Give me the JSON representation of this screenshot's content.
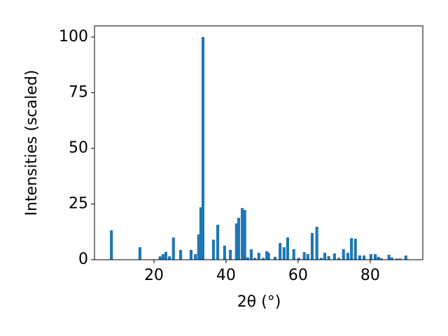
{
  "chart_data": {
    "type": "bar",
    "x_label": "2θ (°)",
    "y_label": "Intensities (scaled)",
    "color": "#1f77b4",
    "x": [
      8.2,
      16.1,
      21.7,
      22.5,
      23.3,
      24.3,
      25.4,
      27.4,
      30.3,
      31.5,
      32.4,
      33.0,
      33.6,
      36.5,
      37.7,
      39.6,
      41.2,
      42.9,
      43.5,
      44.5,
      45.2,
      46.0,
      47.0,
      48.0,
      49.1,
      50.3,
      51.3,
      51.8,
      53.6,
      55.0,
      56.1,
      57.1,
      58.8,
      60.2,
      61.7,
      62.7,
      63.9,
      65.2,
      66.4,
      67.4,
      68.5,
      70.1,
      71.3,
      72.6,
      73.8,
      74.8,
      75.9,
      77.1,
      78.3,
      80.2,
      81.4,
      82.3,
      83.1,
      85.2,
      86.0,
      87.4,
      88.3,
      89.9
    ],
    "values": [
      13.2,
      5.6,
      1.5,
      2.5,
      3.5,
      1.5,
      10,
      4.4,
      4.4,
      2.5,
      11.3,
      23.5,
      100,
      9,
      15.7,
      6.3,
      4.4,
      16.3,
      18.8,
      23.2,
      22.3,
      1,
      4.7,
      0.8,
      3.1,
      0.8,
      3.8,
      3.1,
      1.3,
      7.5,
      5.6,
      10,
      4.7,
      0.8,
      3.4,
      2.5,
      12,
      14.8,
      0.8,
      3.1,
      1.6,
      2.8,
      0.8,
      4.7,
      3.1,
      9.7,
      9.4,
      1.9,
      1.9,
      2.5,
      2.5,
      1.3,
      0.6,
      2.2,
      1,
      0.5,
      0.5,
      1.9
    ],
    "xlim": [
      3.5,
      94.6
    ],
    "ylim": [
      0,
      105
    ],
    "xticks": [
      20,
      40,
      60,
      80
    ],
    "yticks": [
      0,
      25,
      50,
      75,
      100
    ]
  }
}
